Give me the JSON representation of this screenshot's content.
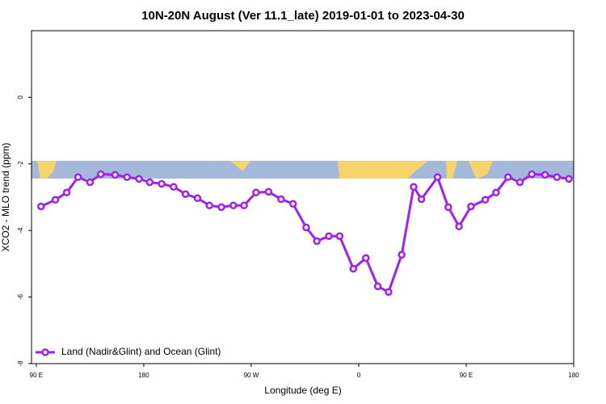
{
  "chart_data": {
    "type": "line",
    "title": "10N-20N August (Ver 11.1_late)   2019-01-01 to 2023-04-30",
    "xlabel": "Longitude (deg E)",
    "ylabel": "XCO2 - MLO trend (ppm)",
    "xlim": [
      86,
      540
    ],
    "ylim": [
      -8,
      2
    ],
    "xticks": [
      {
        "value": 90,
        "label": "90 E"
      },
      {
        "value": 180,
        "label": "180"
      },
      {
        "value": 270,
        "label": "90 W"
      },
      {
        "value": 360,
        "label": "0"
      },
      {
        "value": 450,
        "label": "90 E"
      },
      {
        "value": 540,
        "label": "180"
      }
    ],
    "yticks": [
      0,
      -2,
      -4,
      -6,
      -8
    ],
    "legend": "bottom-left",
    "series": [
      {
        "name": "Land (Nadir&Glint) and Ocean (Glint)",
        "color": "#a020f0",
        "x": [
          94,
          106,
          115.5,
          125,
          135,
          144,
          156,
          166,
          176,
          185,
          195,
          205,
          215,
          225,
          235,
          245,
          255,
          264,
          274,
          284.5,
          295,
          305,
          316,
          325,
          335,
          344,
          355.5,
          366,
          376,
          385,
          396,
          406,
          412.5,
          426,
          435,
          444,
          454,
          466,
          475,
          485,
          495,
          505,
          516,
          526,
          536
        ],
        "values": [
          -3.28,
          -3.08,
          -2.86,
          -2.4,
          -2.55,
          -2.31,
          -2.33,
          -2.4,
          -2.45,
          -2.55,
          -2.6,
          -2.69,
          -2.91,
          -3.03,
          -3.25,
          -3.3,
          -3.25,
          -3.25,
          -2.86,
          -2.84,
          -3.06,
          -3.2,
          -3.91,
          -4.32,
          -4.17,
          -4.17,
          -5.15,
          -4.83,
          -5.68,
          -5.85,
          -4.73,
          -2.69,
          -3.06,
          -2.4,
          -3.3,
          -3.88,
          -3.28,
          -3.08,
          -2.86,
          -2.4,
          -2.55,
          -2.31,
          -2.33,
          -2.4,
          -2.45
        ]
      }
    ]
  }
}
